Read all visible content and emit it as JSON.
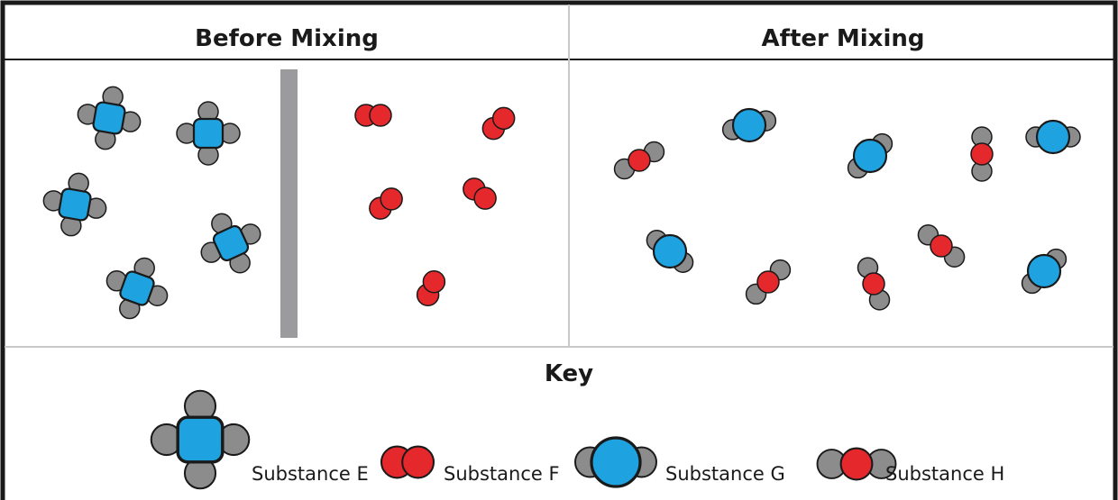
{
  "headers": {
    "before": "Before Mixing",
    "after": "After Mixing"
  },
  "key": {
    "title": "Key",
    "items": [
      {
        "id": "E",
        "label": "Substance E"
      },
      {
        "id": "F",
        "label": "Substance F"
      },
      {
        "id": "G",
        "label": "Substance G"
      },
      {
        "id": "H",
        "label": "Substance H"
      }
    ]
  },
  "colors": {
    "blue": "#1fa3e0",
    "red": "#e5282b",
    "gray": "#8c8c8c",
    "barrier": "#9b9b9d"
  }
}
